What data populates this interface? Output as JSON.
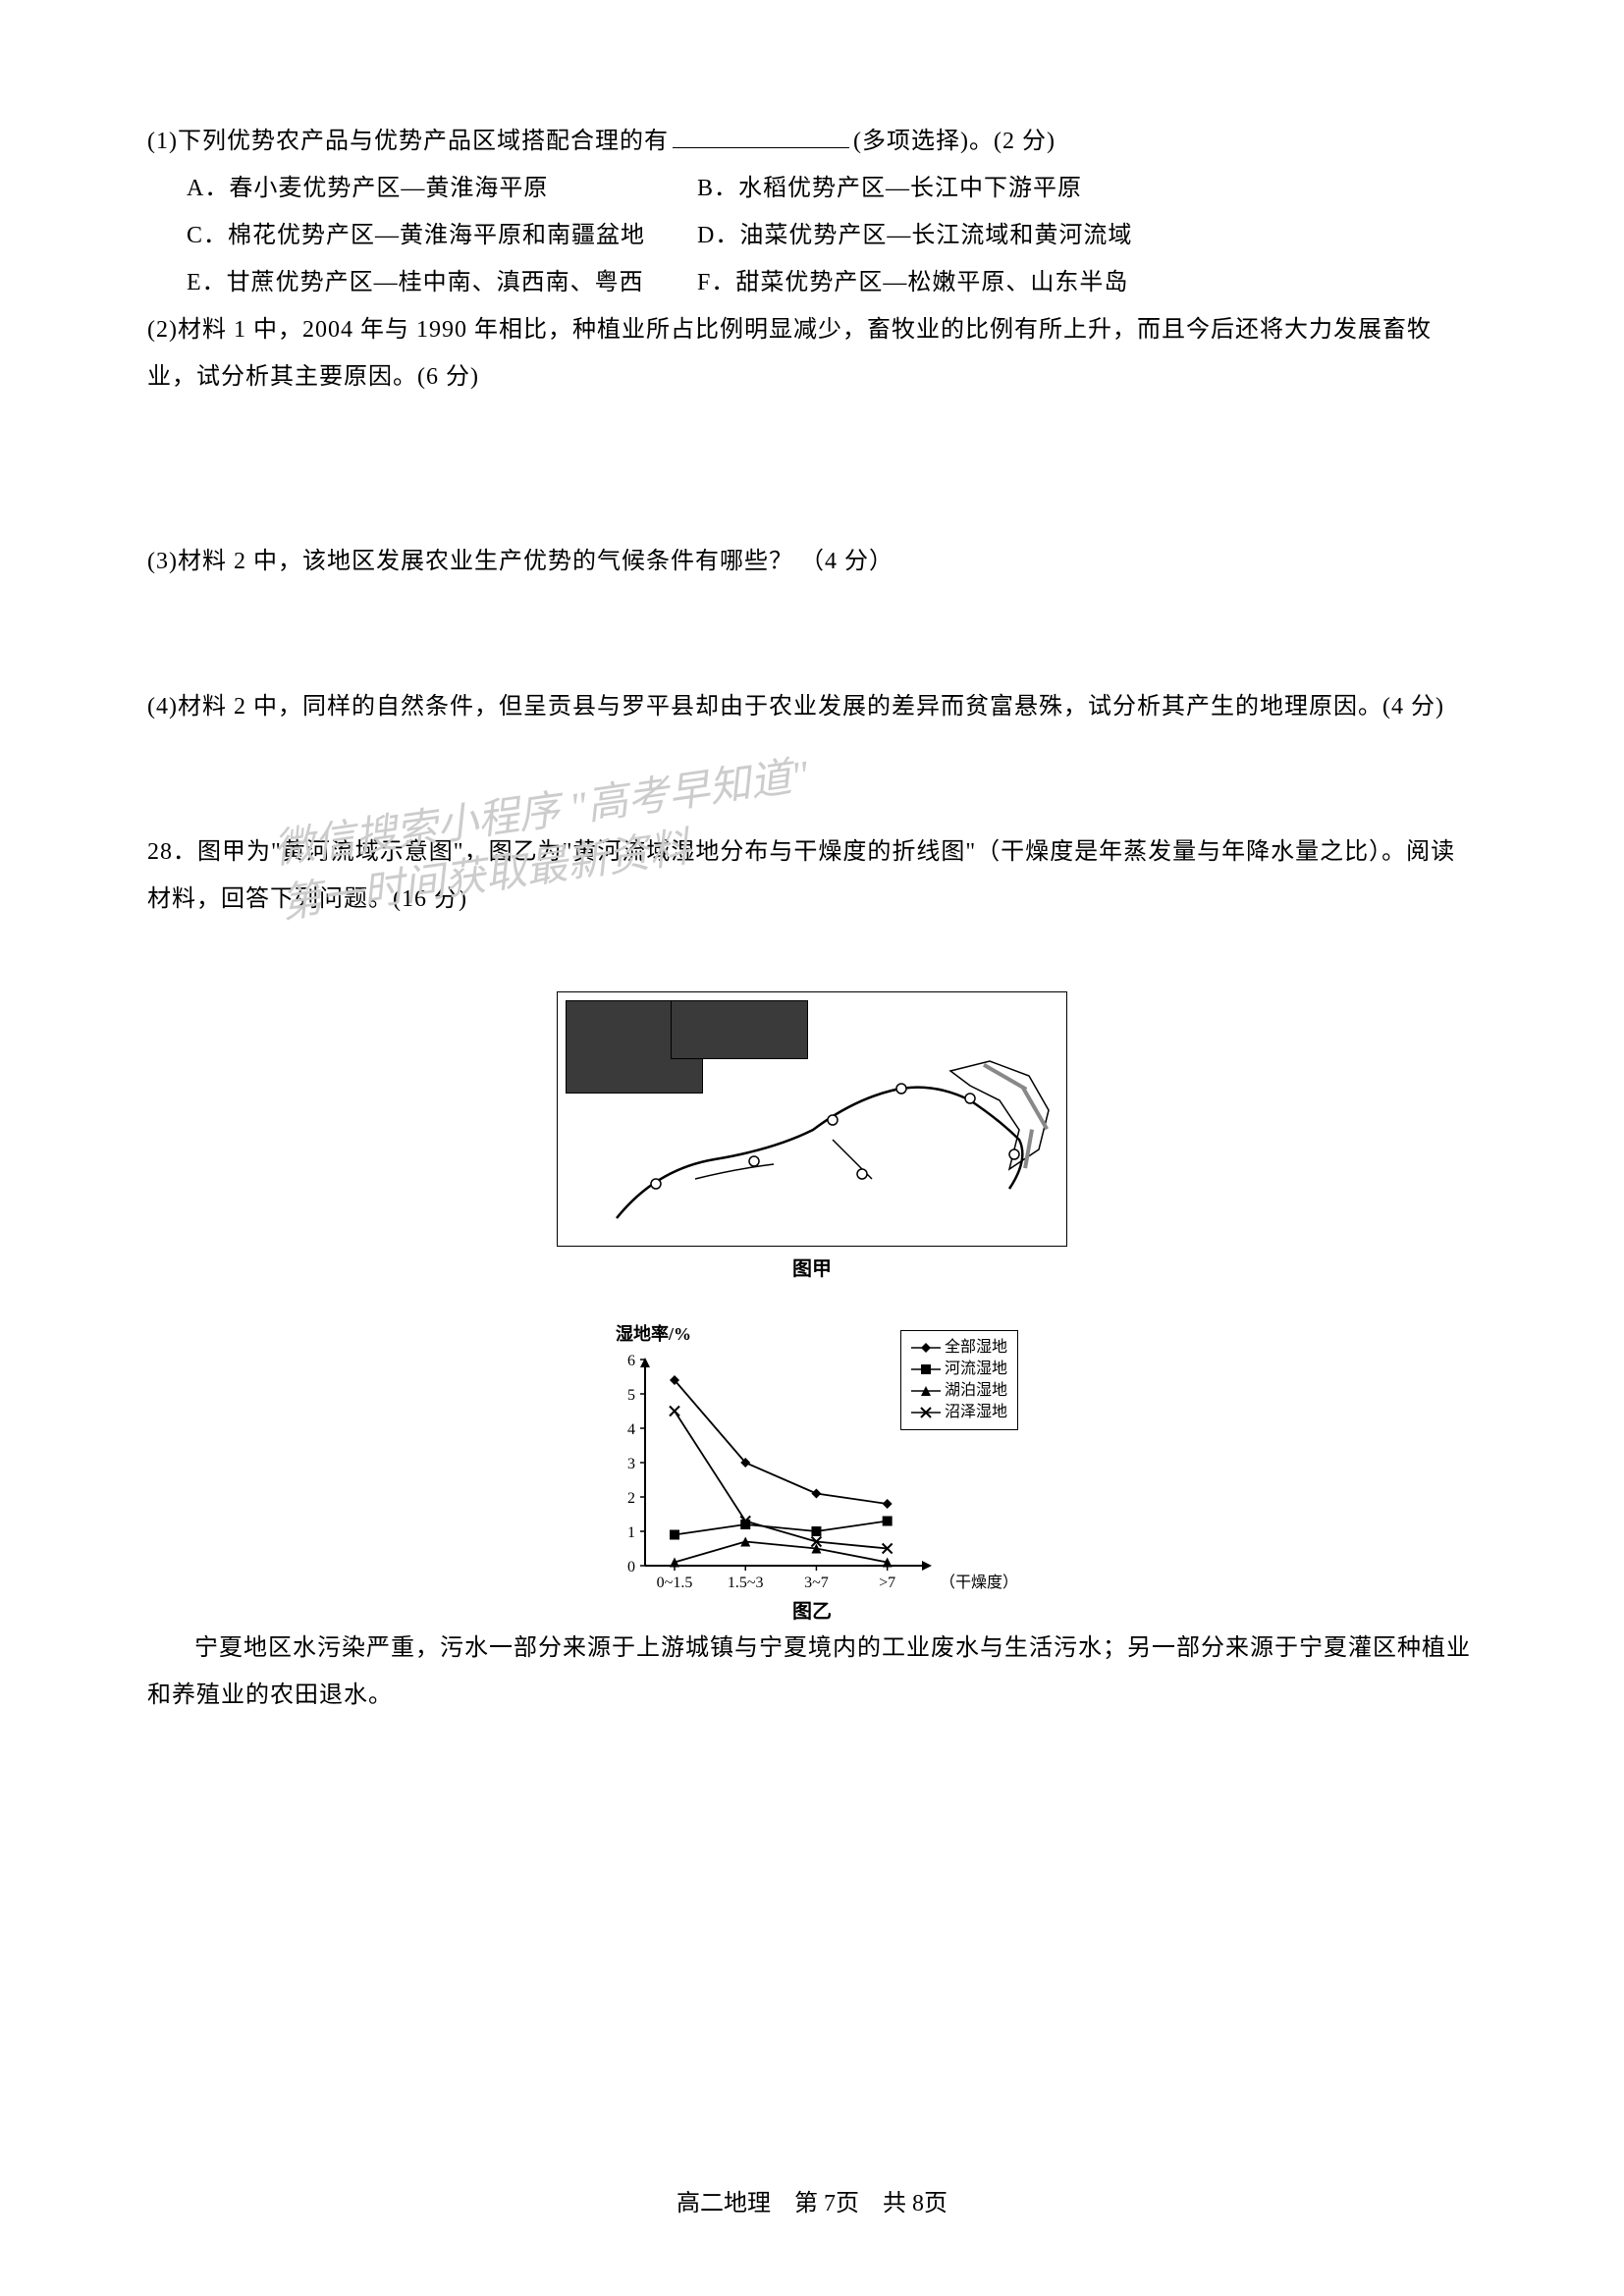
{
  "q1": {
    "prompt_prefix": "(1)下列优势农产品与优势产品区域搭配合理的有",
    "prompt_suffix": "(多项选择)。(2 分)",
    "options": {
      "A": "A．春小麦优势产区—黄淮海平原",
      "B": "B．水稻优势产区—长江中下游平原",
      "C": "C．棉花优势产区—黄淮海平原和南疆盆地",
      "D": "D．油菜优势产区—长江流域和黄河流域",
      "E": "E．甘蔗优势产区—桂中南、滇西南、粤西",
      "F": "F．甜菜优势产区—松嫩平原、山东半岛"
    }
  },
  "q2": "(2)材料 1 中，2004 年与 1990 年相比，种植业所占比例明显减少，畜牧业的比例有所上升，而且今后还将大力发展畜牧业，试分析其主要原因。(6 分)",
  "q3": "(3)材料 2 中，该地区发展农业生产优势的气候条件有哪些？ （4 分）",
  "q4": "(4)材料 2 中，同样的自然条件，但呈贡县与罗平县却由于农业发展的差异而贫富悬殊，试分析其产生的地理原因。(4 分)",
  "watermark_line1": "微信搜索小程序  \"高考早知道\"",
  "watermark_line2": "第一时间获取最新资料",
  "q28": {
    "intro": "28．图甲为\"黄河流域示意图\"，图乙为\"黄河流域湿地分布与干燥度的折线图\"（干燥度是年蒸发量与年降水量之比）。阅读材料，回答下列问题。(16 分)",
    "map_caption": "图甲",
    "chart": {
      "type": "line",
      "y_label": "湿地率/%",
      "y_ticks": [
        0,
        1,
        2,
        3,
        4,
        5,
        6
      ],
      "x_categories": [
        "0~1.5",
        "1.5~3",
        "3~7",
        ">7"
      ],
      "x_label_suffix": "（干燥度）",
      "series": [
        {
          "name": "全部湿地",
          "marker": "diamond",
          "values": [
            5.4,
            3.0,
            2.1,
            1.8
          ]
        },
        {
          "name": "河流湿地",
          "marker": "square",
          "values": [
            0.9,
            1.2,
            1.0,
            1.3
          ]
        },
        {
          "name": "湖泊湿地",
          "marker": "triangle",
          "values": [
            0.1,
            0.7,
            0.5,
            0.1
          ]
        },
        {
          "name": "沼泽湿地",
          "marker": "x",
          "values": [
            4.5,
            1.3,
            0.7,
            0.5
          ]
        }
      ],
      "axis_color": "#000000",
      "line_color": "#000000",
      "bg_color": "#ffffff"
    },
    "chart_caption": "图乙",
    "body": "宁夏地区水污染严重，污水一部分来源于上游城镇与宁夏境内的工业废水与生活污水；另一部分来源于宁夏灌区种植业和养殖业的农田退水。"
  },
  "footer": "高二地理　第 7页　共 8页"
}
